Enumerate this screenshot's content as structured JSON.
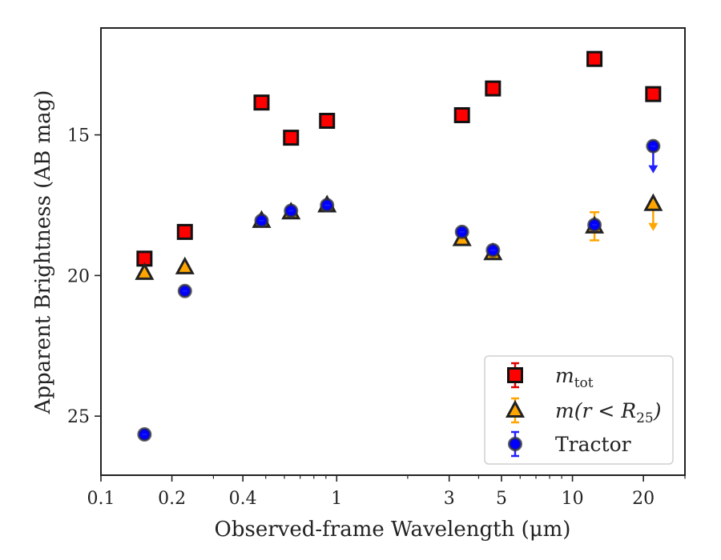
{
  "chart_data": {
    "type": "scatter",
    "title": "",
    "xlabel": "Observed-frame Wavelength (μm)",
    "ylabel": "Apparent Brightness (AB mag)",
    "xscale": "log",
    "yinverted": true,
    "xlim": [
      0.1,
      30
    ],
    "ylim": [
      27.1,
      11.2
    ],
    "xticks": [
      {
        "value": 0.1,
        "label": "0.1"
      },
      {
        "value": 0.2,
        "label": "0.2"
      },
      {
        "value": 0.4,
        "label": "0.4"
      },
      {
        "value": 1,
        "label": "1"
      },
      {
        "value": 3,
        "label": "3"
      },
      {
        "value": 5,
        "label": "5"
      },
      {
        "value": 10,
        "label": "10"
      },
      {
        "value": 20,
        "label": "20"
      }
    ],
    "yticks": [
      {
        "value": 15,
        "label": "15"
      },
      {
        "value": 20,
        "label": "20"
      },
      {
        "value": 25,
        "label": "25"
      }
    ],
    "grid": false,
    "legend_position": "bottom-right",
    "series": [
      {
        "key": "m_tot",
        "legend_main": "m",
        "legend_sub": "tot",
        "marker": "square",
        "color": "#ff0000",
        "error_color": "#e00000",
        "points": [
          {
            "x": 0.153,
            "y": 19.4
          },
          {
            "x": 0.227,
            "y": 18.45
          },
          {
            "x": 0.48,
            "y": 13.85
          },
          {
            "x": 0.64,
            "y": 15.1
          },
          {
            "x": 0.91,
            "y": 14.5
          },
          {
            "x": 3.4,
            "y": 14.3
          },
          {
            "x": 4.6,
            "y": 13.35
          },
          {
            "x": 12.4,
            "y": 12.3
          },
          {
            "x": 22.0,
            "y": 13.55
          }
        ]
      },
      {
        "key": "m_r25",
        "legend_main": "m(r < R",
        "legend_sub": "25",
        "legend_tail": ")",
        "marker": "triangle",
        "color": "#ffa500",
        "error_color": "#ffa500",
        "points": [
          {
            "x": 0.153,
            "y": 19.9
          },
          {
            "x": 0.227,
            "y": 19.7
          },
          {
            "x": 0.48,
            "y": 18.05
          },
          {
            "x": 0.64,
            "y": 17.75
          },
          {
            "x": 0.91,
            "y": 17.5
          },
          {
            "x": 3.4,
            "y": 18.7
          },
          {
            "x": 4.6,
            "y": 19.2
          },
          {
            "x": 12.4,
            "y": 18.25,
            "yerr": 0.5
          },
          {
            "x": 22.0,
            "y": 17.45,
            "upper_limit": true
          }
        ]
      },
      {
        "key": "tractor",
        "legend_main": "Tractor",
        "marker": "circle",
        "color": "#0000ff",
        "error_color": "#2020ff",
        "points": [
          {
            "x": 0.153,
            "y": 25.65
          },
          {
            "x": 0.227,
            "y": 20.55
          },
          {
            "x": 0.48,
            "y": 18.05
          },
          {
            "x": 0.64,
            "y": 17.7
          },
          {
            "x": 0.91,
            "y": 17.5
          },
          {
            "x": 3.4,
            "y": 18.45
          },
          {
            "x": 4.6,
            "y": 19.1
          },
          {
            "x": 12.4,
            "y": 18.2
          },
          {
            "x": 22.0,
            "y": 15.4,
            "upper_limit": true
          }
        ]
      }
    ]
  }
}
